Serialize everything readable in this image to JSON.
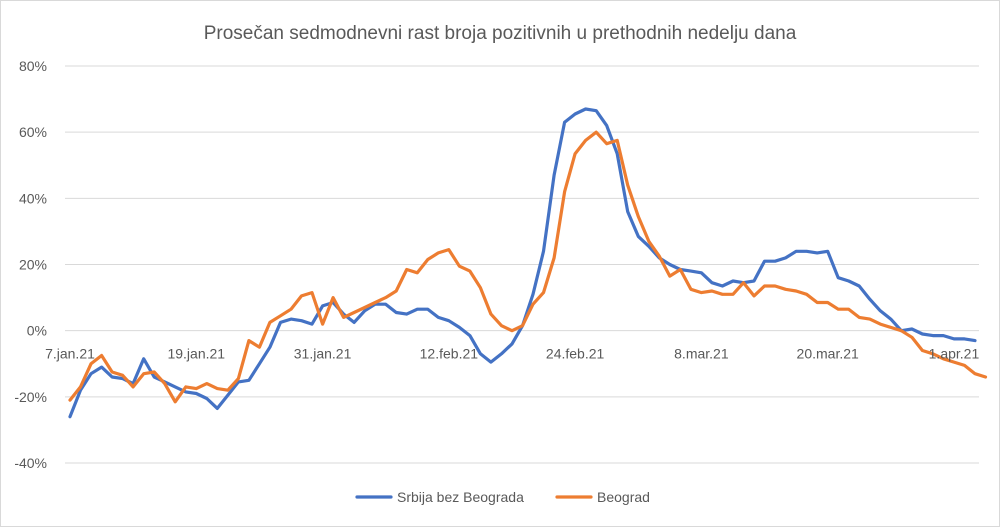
{
  "chart_data": {
    "type": "line",
    "title": "Prosečan sedmodnevni rast broja  pozitivnih u prethodnih nedelju dana",
    "xlabel": "",
    "ylabel": "",
    "ylim": [
      -40,
      80
    ],
    "y_ticks": [
      "80%",
      "60%",
      "40%",
      "20%",
      "0%",
      "-20%",
      "-40%"
    ],
    "y_tick_values": [
      80,
      60,
      40,
      20,
      0,
      -20,
      -40
    ],
    "x_ticks": [
      "7.jan.21",
      "19.jan.21",
      "31.jan.21",
      "12.feb.21",
      "24.feb.21",
      "8.mar.21",
      "20.mar.21",
      "1.apr.21"
    ],
    "x_tick_index": [
      0,
      12,
      24,
      36,
      48,
      60,
      72,
      84
    ],
    "grid": true,
    "legend_position": "bottom",
    "series": [
      {
        "name": "Srbija bez Beograda",
        "color": "#4472c4",
        "values": [
          -26,
          -18,
          -13,
          -11,
          -14,
          -14.5,
          -16,
          -8.5,
          -14,
          -15.5,
          -17,
          -18.5,
          -19,
          -20.5,
          -23.5,
          -19.5,
          -15.5,
          -15,
          -10,
          -5,
          2.5,
          3.5,
          3,
          2,
          7.5,
          8.5,
          5,
          2.5,
          6,
          8,
          8,
          5.5,
          5,
          6.5,
          6.5,
          4,
          3,
          1,
          -1.5,
          -7,
          -9.5,
          -7,
          -4,
          1.5,
          11,
          24,
          47,
          63,
          65.5,
          67,
          66.5,
          62,
          53.5,
          36,
          28.5,
          25.5,
          22,
          20,
          18.5,
          18,
          17.5,
          14.5,
          13.5,
          15,
          14.5,
          15,
          21,
          21,
          22,
          24,
          24,
          23.5,
          24,
          16,
          15,
          13.5,
          9.5,
          6,
          3.5,
          0,
          0.5,
          -1,
          -1.5,
          -1.5,
          -2.5,
          -2.5,
          -3
        ]
      },
      {
        "name": "Beograd",
        "color": "#ed7d31",
        "values": [
          -21,
          -17,
          -10,
          -7.5,
          -12.5,
          -13.5,
          -17,
          -13,
          -12.5,
          -16,
          -21.5,
          -17,
          -17.5,
          -16,
          -17.5,
          -18,
          -14.5,
          -3,
          -5,
          2.5,
          4.5,
          6.5,
          10.5,
          11.5,
          2,
          10,
          4,
          5.5,
          7,
          8.5,
          10,
          12,
          18.5,
          17.5,
          21.5,
          23.5,
          24.5,
          19.5,
          18,
          13,
          5,
          1.5,
          0,
          1.5,
          8,
          11.5,
          22,
          42,
          53.5,
          57.5,
          60,
          56.5,
          57.5,
          44,
          34.5,
          27,
          22.5,
          16.5,
          18.5,
          12.5,
          11.5,
          12,
          11,
          11,
          14.5,
          10.5,
          13.5,
          13.5,
          12.5,
          12,
          11,
          8.5,
          8.5,
          6.5,
          6.5,
          4,
          3.5,
          2,
          1,
          0,
          -2,
          -6,
          -7,
          -8.5,
          -9.5,
          -10.5,
          -13,
          -14
        ]
      }
    ]
  }
}
